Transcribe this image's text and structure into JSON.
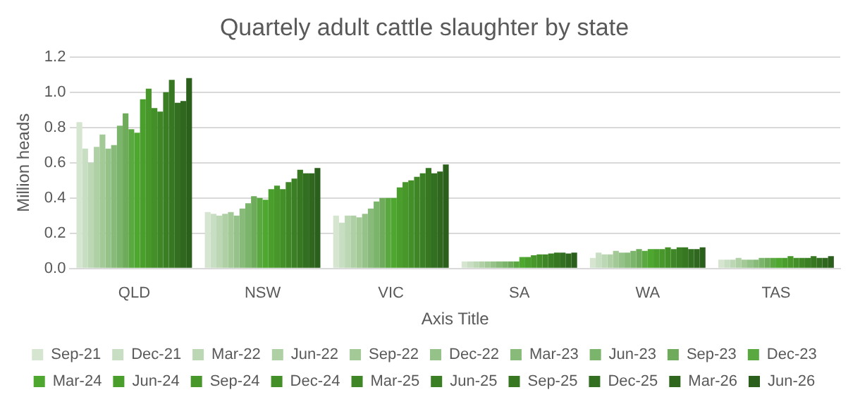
{
  "chart_data": {
    "type": "bar",
    "title": "Quartely adult cattle slaughter by state",
    "xlabel": "Axis Title",
    "ylabel": "Million heads",
    "categories": [
      "QLD",
      "NSW",
      "VIC",
      "SA",
      "WA",
      "TAS"
    ],
    "ylim": [
      0,
      1.2
    ],
    "yticks": [
      {
        "value": 0,
        "label": "0.0"
      },
      0.2,
      0.4,
      0.6,
      0.8,
      {
        "value": 1,
        "label": "1.0"
      },
      1.2
    ],
    "grid": "y",
    "legend": "bottom",
    "series": [
      {
        "name": "Sep-21",
        "color": "#d5e5d0",
        "values": [
          0.83,
          0.32,
          0.3,
          0.04,
          0.06,
          0.05
        ]
      },
      {
        "name": "Dec-21",
        "color": "#c8dec2",
        "values": [
          0.68,
          0.31,
          0.26,
          0.04,
          0.09,
          0.05
        ]
      },
      {
        "name": "Mar-22",
        "color": "#bcd7b3",
        "values": [
          0.6,
          0.3,
          0.3,
          0.04,
          0.08,
          0.05
        ]
      },
      {
        "name": "Jun-22",
        "color": "#afd0a5",
        "values": [
          0.69,
          0.31,
          0.3,
          0.04,
          0.08,
          0.06
        ]
      },
      {
        "name": "Sep-22",
        "color": "#a2c996",
        "values": [
          0.76,
          0.32,
          0.29,
          0.04,
          0.1,
          0.05
        ]
      },
      {
        "name": "Dec-22",
        "color": "#95c288",
        "values": [
          0.68,
          0.3,
          0.31,
          0.04,
          0.09,
          0.05
        ]
      },
      {
        "name": "Mar-23",
        "color": "#88bb7a",
        "values": [
          0.7,
          0.34,
          0.34,
          0.04,
          0.09,
          0.05
        ]
      },
      {
        "name": "Jun-23",
        "color": "#7bb46b",
        "values": [
          0.81,
          0.37,
          0.38,
          0.04,
          0.1,
          0.06
        ]
      },
      {
        "name": "Sep-23",
        "color": "#6eac5c",
        "values": [
          0.88,
          0.41,
          0.4,
          0.04,
          0.11,
          0.06
        ]
      },
      {
        "name": "Dec-23",
        "color": "#5aa840",
        "values": [
          0.79,
          0.4,
          0.4,
          0.04,
          0.1,
          0.06
        ]
      },
      {
        "name": "Mar-24",
        "color": "#4ea72e",
        "values": [
          0.77,
          0.39,
          0.4,
          0.065,
          0.11,
          0.06
        ]
      },
      {
        "name": "Jun-24",
        "color": "#4a9f2c",
        "values": [
          0.96,
          0.45,
          0.46,
          0.065,
          0.11,
          0.06
        ]
      },
      {
        "name": "Sep-24",
        "color": "#47972a",
        "values": [
          1.02,
          0.47,
          0.49,
          0.075,
          0.11,
          0.07
        ]
      },
      {
        "name": "Dec-24",
        "color": "#438f28",
        "values": [
          0.91,
          0.45,
          0.5,
          0.08,
          0.12,
          0.06
        ]
      },
      {
        "name": "Mar-25",
        "color": "#3f8726",
        "values": [
          0.89,
          0.49,
          0.52,
          0.08,
          0.11,
          0.06
        ]
      },
      {
        "name": "Jun-25",
        "color": "#3b7f24",
        "values": [
          1.0,
          0.51,
          0.54,
          0.085,
          0.12,
          0.06
        ]
      },
      {
        "name": "Sep-25",
        "color": "#377722",
        "values": [
          1.07,
          0.56,
          0.57,
          0.09,
          0.12,
          0.07
        ]
      },
      {
        "name": "Dec-25",
        "color": "#336f20",
        "values": [
          0.94,
          0.54,
          0.54,
          0.09,
          0.11,
          0.06
        ]
      },
      {
        "name": "Mar-26",
        "color": "#2f671e",
        "values": [
          0.95,
          0.54,
          0.55,
          0.085,
          0.11,
          0.06
        ]
      },
      {
        "name": "Jun-26",
        "color": "#2b5f1c",
        "values": [
          1.08,
          0.57,
          0.59,
          0.09,
          0.12,
          0.07
        ]
      }
    ]
  }
}
